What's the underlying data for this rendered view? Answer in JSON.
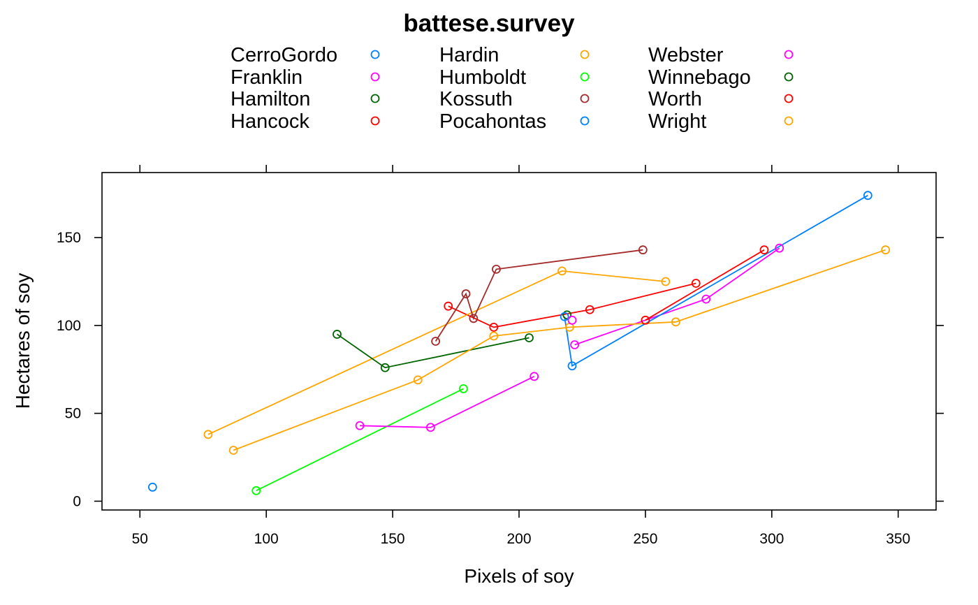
{
  "chart_data": {
    "type": "scatter",
    "title": "battese.survey",
    "xlabel": "Pixels of soy",
    "ylabel": "Hectares of soy",
    "xlim": [
      35,
      365
    ],
    "ylim": [
      -5,
      187
    ],
    "x_ticks": [
      50,
      100,
      150,
      200,
      250,
      300,
      350
    ],
    "y_ticks": [
      0,
      50,
      100,
      150
    ],
    "grid": false,
    "legend_position": "top",
    "legend_columns": 3,
    "series": [
      {
        "name": "CerroGordo",
        "color": "#0080ff",
        "points": [
          [
            55,
            8
          ]
        ]
      },
      {
        "name": "Franklin",
        "color": "#ff00ff",
        "points": [
          [
            222,
            89
          ],
          [
            274,
            115
          ],
          [
            303,
            144
          ]
        ]
      },
      {
        "name": "Hamilton",
        "color": "#006400",
        "points": [
          [
            219,
            106
          ]
        ]
      },
      {
        "name": "Hancock",
        "color": "#ff0000",
        "points": [
          [
            172,
            111
          ],
          [
            190,
            99
          ],
          [
            228,
            109
          ],
          [
            270,
            124
          ]
        ]
      },
      {
        "name": "Hardin",
        "color": "#ffa500",
        "points": [
          [
            77,
            38
          ],
          [
            217,
            131
          ],
          [
            258,
            125
          ]
        ]
      },
      {
        "name": "Humboldt",
        "color": "#00ff00",
        "points": [
          [
            96,
            6
          ],
          [
            178,
            64
          ]
        ]
      },
      {
        "name": "Kossuth",
        "color": "#a52a2a",
        "points": [
          [
            167,
            91
          ],
          [
            179,
            118
          ],
          [
            182,
            104
          ],
          [
            191,
            132
          ],
          [
            249,
            143
          ]
        ]
      },
      {
        "name": "Pocahontas",
        "color": "#0080ff",
        "points": [
          [
            218,
            105
          ],
          [
            221,
            77
          ],
          [
            338,
            174
          ]
        ]
      },
      {
        "name": "Webster",
        "color": "#ff00ff",
        "points": [
          [
            137,
            43
          ],
          [
            165,
            42
          ],
          [
            206,
            71
          ]
        ]
      },
      {
        "name": "Winnebago",
        "color": "#006400",
        "points": [
          [
            128,
            95
          ],
          [
            147,
            76
          ],
          [
            204,
            93
          ]
        ]
      },
      {
        "name": "Worth",
        "color": "#ff0000",
        "points": [
          [
            250,
            103
          ],
          [
            297,
            143
          ]
        ]
      },
      {
        "name": "Wright",
        "color": "#ffa500",
        "points": [
          [
            87,
            29
          ],
          [
            160,
            69
          ],
          [
            190,
            94
          ],
          [
            220,
            99
          ],
          [
            262,
            102
          ],
          [
            345,
            143
          ]
        ]
      }
    ],
    "extra_points": [
      {
        "series": "Webster",
        "color": "#ff00ff",
        "points": [
          [
            221,
            103
          ]
        ]
      }
    ]
  }
}
